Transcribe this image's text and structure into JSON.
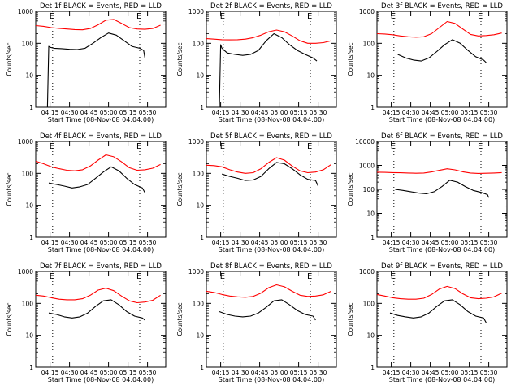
{
  "figure": {
    "background": "#ffffff",
    "axis_color": "#000000"
  },
  "chart_data": [
    {
      "type": "line",
      "title": "Det 1f BLACK = Events, RED = LLD",
      "xlabel": "Start Time (08-Nov-08 04:04:00)",
      "ylabel": "Counts/sec",
      "yscale": "log",
      "ylim": [
        1,
        1000
      ],
      "y_ticks": [
        "1",
        "10",
        "100",
        "1000"
      ],
      "x_ticks": [
        "04:15",
        "04:30",
        "04:45",
        "05:00",
        "05:15",
        "05:30"
      ],
      "markers": [
        "E",
        "E"
      ],
      "series": [
        {
          "color": "#ff0000",
          "x": [
            "04:04",
            "04:10",
            "04:16",
            "04:22",
            "04:28",
            "04:34",
            "04:40",
            "04:46",
            "04:52",
            "04:58",
            "05:04",
            "05:10",
            "05:16",
            "05:22",
            "05:28",
            "05:34",
            "05:40"
          ],
          "y": [
            360,
            340,
            310,
            295,
            280,
            270,
            265,
            290,
            380,
            530,
            560,
            420,
            310,
            280,
            275,
            290,
            370
          ]
        },
        {
          "color": "#000000",
          "x": [
            "04:13",
            "04:14",
            "04:15",
            "04:18",
            "04:24",
            "04:30",
            "04:36",
            "04:42",
            "04:48",
            "04:54",
            "05:00",
            "05:06",
            "05:12",
            "05:18",
            "05:24",
            "05:27",
            "05:28"
          ],
          "y": [
            1,
            80,
            75,
            70,
            68,
            65,
            64,
            70,
            100,
            150,
            210,
            180,
            120,
            80,
            70,
            60,
            35
          ]
        }
      ]
    },
    {
      "type": "line",
      "title": "Det 2f BLACK = Events, RED = LLD",
      "xlabel": "Start Time (08-Nov-08 04:04:00)",
      "ylabel": "Counts/sec",
      "yscale": "log",
      "ylim": [
        1,
        1000
      ],
      "y_ticks": [
        "1",
        "10",
        "100",
        "1000"
      ],
      "x_ticks": [
        "04:15",
        "04:30",
        "04:45",
        "05:00",
        "05:15",
        "05:30"
      ],
      "markers": [
        "E",
        "E"
      ],
      "series": [
        {
          "color": "#ff0000",
          "x": [
            "04:04",
            "04:10",
            "04:16",
            "04:22",
            "04:28",
            "04:34",
            "04:40",
            "04:46",
            "04:52",
            "04:58",
            "05:04",
            "05:10",
            "05:16",
            "05:22",
            "05:28",
            "05:34",
            "05:40"
          ],
          "y": [
            140,
            135,
            130,
            128,
            130,
            135,
            150,
            180,
            230,
            260,
            230,
            170,
            120,
            100,
            100,
            105,
            120
          ]
        },
        {
          "color": "#000000",
          "x": [
            "04:14",
            "04:15",
            "04:16",
            "04:20",
            "04:26",
            "04:32",
            "04:38",
            "04:44",
            "04:50",
            "04:56",
            "05:02",
            "05:08",
            "05:14",
            "05:20",
            "05:26",
            "05:29"
          ],
          "y": [
            1,
            90,
            70,
            50,
            45,
            42,
            45,
            60,
            120,
            200,
            150,
            90,
            60,
            45,
            35,
            28
          ]
        }
      ]
    },
    {
      "type": "line",
      "title": "Det 3f BLACK = Events, RED = LLD",
      "xlabel": "Start Time (08-Nov-08 04:04:00)",
      "ylabel": "Counts/sec",
      "yscale": "log",
      "ylim": [
        1,
        1000
      ],
      "y_ticks": [
        "1",
        "10",
        "100",
        "1000"
      ],
      "x_ticks": [
        "04:15",
        "04:30",
        "04:45",
        "05:00",
        "05:15",
        "05:30"
      ],
      "markers": [
        "E",
        "E"
      ],
      "series": [
        {
          "color": "#ff0000",
          "x": [
            "04:04",
            "04:10",
            "04:16",
            "04:22",
            "04:28",
            "04:34",
            "04:40",
            "04:46",
            "04:52",
            "04:58",
            "05:04",
            "05:10",
            "05:16",
            "05:22",
            "05:28",
            "05:34",
            "05:40"
          ],
          "y": [
            200,
            195,
            185,
            170,
            160,
            155,
            160,
            200,
            310,
            480,
            420,
            280,
            190,
            170,
            175,
            185,
            210
          ]
        },
        {
          "color": "#000000",
          "x": [
            "04:20",
            "04:26",
            "04:32",
            "04:38",
            "04:44",
            "04:50",
            "04:56",
            "05:02",
            "05:08",
            "05:14",
            "05:20",
            "05:26",
            "05:28"
          ],
          "y": [
            45,
            35,
            30,
            28,
            35,
            55,
            90,
            130,
            100,
            60,
            38,
            30,
            25
          ]
        }
      ]
    },
    {
      "type": "line",
      "title": "Det 4f BLACK = Events, RED = LLD",
      "xlabel": "Start Time (08-Nov-08 04:04:00)",
      "ylabel": "Counts/sec",
      "yscale": "log",
      "ylim": [
        1,
        1000
      ],
      "y_ticks": [
        "1",
        "10",
        "100",
        "1000"
      ],
      "x_ticks": [
        "04:15",
        "04:30",
        "04:45",
        "05:00",
        "05:15",
        "05:30"
      ],
      "markers": [
        "E",
        "E"
      ],
      "series": [
        {
          "color": "#ff0000",
          "x": [
            "04:04",
            "04:10",
            "04:16",
            "04:22",
            "04:28",
            "04:34",
            "04:40",
            "04:46",
            "04:52",
            "04:58",
            "05:04",
            "05:10",
            "05:16",
            "05:22",
            "05:28",
            "05:34",
            "05:40"
          ],
          "y": [
            240,
            200,
            160,
            140,
            125,
            120,
            130,
            170,
            260,
            380,
            330,
            230,
            150,
            125,
            130,
            145,
            190
          ]
        },
        {
          "color": "#000000",
          "x": [
            "04:14",
            "04:20",
            "04:26",
            "04:32",
            "04:38",
            "04:44",
            "04:50",
            "04:56",
            "05:02",
            "05:08",
            "05:14",
            "05:20",
            "05:26",
            "05:28"
          ],
          "y": [
            50,
            45,
            40,
            35,
            38,
            45,
            70,
            110,
            160,
            120,
            70,
            45,
            35,
            25
          ]
        }
      ]
    },
    {
      "type": "line",
      "title": "Det 5f BLACK = Events, RED = LLD",
      "xlabel": "Start Time (08-Nov-08 04:04:00)",
      "ylabel": "Counts/sec",
      "yscale": "log",
      "ylim": [
        1,
        1000
      ],
      "y_ticks": [
        "1",
        "10",
        "100",
        "1000"
      ],
      "x_ticks": [
        "04:15",
        "04:30",
        "04:45",
        "05:00",
        "05:15",
        "05:30"
      ],
      "markers": [
        "E",
        "E"
      ],
      "series": [
        {
          "color": "#ff0000",
          "x": [
            "04:04",
            "04:10",
            "04:16",
            "04:22",
            "04:28",
            "04:34",
            "04:40",
            "04:46",
            "04:52",
            "04:58",
            "05:04",
            "05:10",
            "05:16",
            "05:22",
            "05:28",
            "05:34",
            "05:40"
          ],
          "y": [
            180,
            175,
            160,
            130,
            110,
            100,
            105,
            140,
            220,
            310,
            260,
            170,
            120,
            105,
            110,
            130,
            190
          ]
        },
        {
          "color": "#000000",
          "x": [
            "04:16",
            "04:22",
            "04:28",
            "04:34",
            "04:40",
            "04:46",
            "04:52",
            "04:58",
            "05:04",
            "05:10",
            "05:16",
            "05:22",
            "05:28",
            "05:30"
          ],
          "y": [
            95,
            80,
            70,
            60,
            62,
            80,
            140,
            220,
            200,
            140,
            90,
            65,
            60,
            40
          ]
        }
      ]
    },
    {
      "type": "line",
      "title": "Det 6f BLACK = Events, RED = LLD",
      "xlabel": "Start Time (08-Nov-08 04:04:00)",
      "ylabel": "Counts/sec",
      "yscale": "log",
      "ylim": [
        1,
        10000
      ],
      "y_ticks": [
        "1",
        "10",
        "100",
        "1000",
        "10000"
      ],
      "x_ticks": [
        "04:15",
        "04:30",
        "04:45",
        "05:00",
        "05:15",
        "05:30"
      ],
      "markers": [
        "E",
        "E"
      ],
      "series": [
        {
          "color": "#ff0000",
          "x": [
            "04:04",
            "04:10",
            "04:16",
            "04:22",
            "04:28",
            "04:34",
            "04:40",
            "04:46",
            "04:52",
            "04:58",
            "05:04",
            "05:10",
            "05:16",
            "05:22",
            "05:28",
            "05:34",
            "05:40"
          ],
          "y": [
            520,
            510,
            500,
            490,
            480,
            470,
            480,
            530,
            620,
            720,
            650,
            540,
            480,
            460,
            470,
            480,
            500
          ]
        },
        {
          "color": "#000000",
          "x": [
            "04:18",
            "04:24",
            "04:30",
            "04:36",
            "04:42",
            "04:48",
            "04:54",
            "05:00",
            "05:06",
            "05:12",
            "05:18",
            "05:24",
            "05:29",
            "05:30"
          ],
          "y": [
            100,
            90,
            80,
            70,
            65,
            80,
            130,
            240,
            200,
            130,
            90,
            75,
            60,
            45
          ]
        }
      ]
    },
    {
      "type": "line",
      "title": "Det 7f BLACK = Events, RED = LLD",
      "xlabel": "Start Time (08-Nov-08 04:04:00)",
      "ylabel": "Counts/sec",
      "yscale": "log",
      "ylim": [
        1,
        1000
      ],
      "y_ticks": [
        "1",
        "10",
        "100",
        "1000"
      ],
      "x_ticks": [
        "04:15",
        "04:30",
        "04:45",
        "05:00",
        "05:15",
        "05:30"
      ],
      "markers": [
        "E",
        "E"
      ],
      "series": [
        {
          "color": "#ff0000",
          "x": [
            "04:04",
            "04:10",
            "04:16",
            "04:22",
            "04:28",
            "04:34",
            "04:40",
            "04:46",
            "04:52",
            "04:58",
            "05:04",
            "05:10",
            "05:16",
            "05:22",
            "05:28",
            "05:34",
            "05:40"
          ],
          "y": [
            180,
            170,
            150,
            135,
            130,
            130,
            140,
            180,
            260,
            300,
            250,
            170,
            120,
            105,
            110,
            125,
            180
          ]
        },
        {
          "color": "#000000",
          "x": [
            "04:14",
            "04:20",
            "04:26",
            "04:32",
            "04:38",
            "04:44",
            "04:50",
            "04:56",
            "05:02",
            "05:08",
            "05:14",
            "05:20",
            "05:26",
            "05:28"
          ],
          "y": [
            50,
            45,
            38,
            35,
            38,
            50,
            80,
            120,
            130,
            90,
            55,
            40,
            35,
            30
          ]
        }
      ]
    },
    {
      "type": "line",
      "title": "Det 8f BLACK = Events, RED = LLD",
      "xlabel": "Start Time (08-Nov-08 04:04:00)",
      "ylabel": "Counts/sec",
      "yscale": "log",
      "ylim": [
        1,
        1000
      ],
      "y_ticks": [
        "1",
        "10",
        "100",
        "1000"
      ],
      "x_ticks": [
        "04:15",
        "04:30",
        "04:45",
        "05:00",
        "05:15",
        "05:30"
      ],
      "markers": [
        "E",
        "E"
      ],
      "series": [
        {
          "color": "#ff0000",
          "x": [
            "04:04",
            "04:10",
            "04:16",
            "04:22",
            "04:28",
            "04:34",
            "04:40",
            "04:46",
            "04:52",
            "04:58",
            "05:04",
            "05:10",
            "05:16",
            "05:22",
            "05:28",
            "05:34",
            "05:40"
          ],
          "y": [
            240,
            220,
            190,
            170,
            160,
            155,
            165,
            210,
            310,
            380,
            330,
            240,
            180,
            165,
            170,
            185,
            240
          ]
        },
        {
          "color": "#000000",
          "x": [
            "04:14",
            "04:20",
            "04:26",
            "04:32",
            "04:38",
            "04:44",
            "04:50",
            "04:56",
            "05:02",
            "05:08",
            "05:14",
            "05:20",
            "05:26",
            "05:28"
          ],
          "y": [
            55,
            45,
            40,
            38,
            40,
            50,
            75,
            120,
            130,
            90,
            60,
            45,
            40,
            30
          ]
        }
      ]
    },
    {
      "type": "line",
      "title": "Det 9f BLACK = Events, RED = LLD",
      "xlabel": "Start Time (08-Nov-08 04:04:00)",
      "ylabel": "Counts/sec",
      "yscale": "log",
      "ylim": [
        1,
        1000
      ],
      "y_ticks": [
        "1",
        "10",
        "100",
        "1000"
      ],
      "x_ticks": [
        "04:15",
        "04:30",
        "04:45",
        "05:00",
        "05:15",
        "05:30"
      ],
      "markers": [
        "E",
        "E"
      ],
      "series": [
        {
          "color": "#ff0000",
          "x": [
            "04:04",
            "04:10",
            "04:16",
            "04:22",
            "04:28",
            "04:34",
            "04:40",
            "04:46",
            "04:52",
            "04:58",
            "05:04",
            "05:10",
            "05:16",
            "05:22",
            "05:28",
            "05:34",
            "05:40"
          ],
          "y": [
            190,
            170,
            150,
            140,
            135,
            135,
            145,
            190,
            280,
            340,
            290,
            200,
            150,
            140,
            145,
            160,
            210
          ]
        },
        {
          "color": "#000000",
          "x": [
            "04:14",
            "04:20",
            "04:26",
            "04:32",
            "04:38",
            "04:44",
            "04:50",
            "04:56",
            "05:02",
            "05:08",
            "05:14",
            "05:20",
            "05:26",
            "05:28"
          ],
          "y": [
            50,
            42,
            38,
            35,
            38,
            50,
            80,
            120,
            130,
            90,
            55,
            40,
            35,
            25
          ]
        }
      ]
    }
  ]
}
